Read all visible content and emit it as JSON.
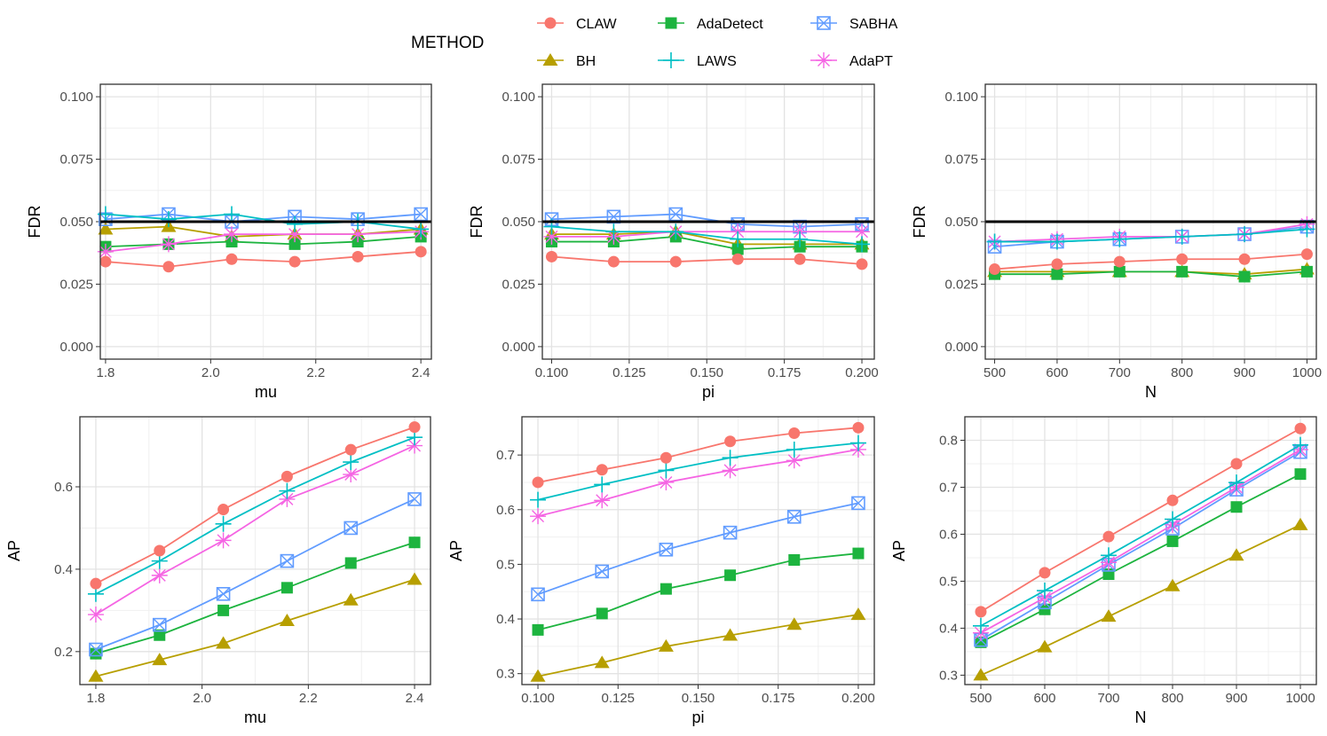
{
  "legend": {
    "title": "METHOD",
    "entries": [
      {
        "name": "CLAW",
        "color": "#f8766d",
        "shape": "circle"
      },
      {
        "name": "AdaDetect",
        "color": "#1db43f",
        "shape": "square"
      },
      {
        "name": "SABHA",
        "color": "#619cff",
        "shape": "boxcross"
      },
      {
        "name": "BH",
        "color": "#b79f00",
        "shape": "triangle"
      },
      {
        "name": "LAWS",
        "color": "#00bfc4",
        "shape": "plus"
      },
      {
        "name": "AdaPT",
        "color": "#f564e3",
        "shape": "star"
      }
    ]
  },
  "chart_data": [
    {
      "type": "line",
      "xlabel": "mu",
      "ylabel": "FDR",
      "x": [
        1.8,
        1.92,
        2.04,
        2.16,
        2.28,
        2.4
      ],
      "xlim": [
        1.79,
        2.42
      ],
      "ylim": [
        -0.005,
        0.105
      ],
      "xticks": [
        1.8,
        2.0,
        2.2,
        2.4
      ],
      "xtick_labels": [
        "1.8",
        "2.0",
        "2.2",
        "2.4"
      ],
      "yticks": [
        0.0,
        0.025,
        0.05,
        0.075,
        0.1
      ],
      "ytick_labels": [
        "0.000",
        "0.025",
        "0.050",
        "0.075",
        "0.100"
      ],
      "hline": 0.05,
      "series": [
        {
          "name": "SABHA",
          "values": [
            0.051,
            0.053,
            0.05,
            0.052,
            0.051,
            0.053
          ]
        },
        {
          "name": "LAWS",
          "values": [
            0.053,
            0.051,
            0.053,
            0.049,
            0.05,
            0.047
          ]
        },
        {
          "name": "BH",
          "values": [
            0.047,
            0.048,
            0.044,
            0.045,
            0.045,
            0.047
          ]
        },
        {
          "name": "AdaPT",
          "values": [
            0.038,
            0.041,
            0.045,
            0.045,
            0.045,
            0.046
          ]
        },
        {
          "name": "AdaDetect",
          "values": [
            0.04,
            0.041,
            0.042,
            0.041,
            0.042,
            0.044
          ]
        },
        {
          "name": "CLAW",
          "values": [
            0.034,
            0.032,
            0.035,
            0.034,
            0.036,
            0.038
          ]
        }
      ]
    },
    {
      "type": "line",
      "xlabel": "pi",
      "ylabel": "FDR",
      "x": [
        0.1,
        0.12,
        0.14,
        0.16,
        0.18,
        0.2
      ],
      "xlim": [
        0.097,
        0.204
      ],
      "ylim": [
        -0.005,
        0.105
      ],
      "xticks": [
        0.1,
        0.125,
        0.15,
        0.175,
        0.2
      ],
      "xtick_labels": [
        "0.100",
        "0.125",
        "0.150",
        "0.175",
        "0.200"
      ],
      "yticks": [
        0.0,
        0.025,
        0.05,
        0.075,
        0.1
      ],
      "ytick_labels": [
        "0.000",
        "0.025",
        "0.050",
        "0.075",
        "0.100"
      ],
      "hline": 0.05,
      "series": [
        {
          "name": "SABHA",
          "values": [
            0.051,
            0.052,
            0.053,
            0.049,
            0.048,
            0.049
          ]
        },
        {
          "name": "LAWS",
          "values": [
            0.048,
            0.046,
            0.046,
            0.043,
            0.043,
            0.041
          ]
        },
        {
          "name": "BH",
          "values": [
            0.045,
            0.045,
            0.046,
            0.041,
            0.041,
            0.041
          ]
        },
        {
          "name": "AdaPT",
          "values": [
            0.044,
            0.044,
            0.046,
            0.046,
            0.046,
            0.046
          ]
        },
        {
          "name": "AdaDetect",
          "values": [
            0.042,
            0.042,
            0.044,
            0.039,
            0.04,
            0.04
          ]
        },
        {
          "name": "CLAW",
          "values": [
            0.036,
            0.034,
            0.034,
            0.035,
            0.035,
            0.033
          ]
        }
      ]
    },
    {
      "type": "line",
      "xlabel": "N",
      "ylabel": "FDR",
      "x": [
        500,
        600,
        700,
        800,
        900,
        1000
      ],
      "xlim": [
        485,
        1015
      ],
      "ylim": [
        -0.005,
        0.105
      ],
      "xticks": [
        500,
        600,
        700,
        800,
        900,
        1000
      ],
      "xtick_labels": [
        "500",
        "600",
        "700",
        "800",
        "900",
        "1000"
      ],
      "yticks": [
        0.0,
        0.025,
        0.05,
        0.075,
        0.1
      ],
      "ytick_labels": [
        "0.000",
        "0.025",
        "0.050",
        "0.075",
        "0.100"
      ],
      "hline": 0.05,
      "series": [
        {
          "name": "LAWS",
          "values": [
            0.042,
            0.042,
            0.043,
            0.044,
            0.045,
            0.047
          ]
        },
        {
          "name": "AdaPT",
          "values": [
            0.042,
            0.043,
            0.044,
            0.044,
            0.045,
            0.049
          ]
        },
        {
          "name": "SABHA",
          "values": [
            0.04,
            0.042,
            0.043,
            0.044,
            0.045,
            0.048
          ]
        },
        {
          "name": "BH",
          "values": [
            0.03,
            0.03,
            0.03,
            0.03,
            0.029,
            0.031
          ]
        },
        {
          "name": "AdaDetect",
          "values": [
            0.029,
            0.029,
            0.03,
            0.03,
            0.028,
            0.03
          ]
        },
        {
          "name": "CLAW",
          "values": [
            0.031,
            0.033,
            0.034,
            0.035,
            0.035,
            0.037
          ]
        }
      ]
    },
    {
      "type": "line",
      "xlabel": "mu",
      "ylabel": "AP",
      "x": [
        1.8,
        1.92,
        2.04,
        2.16,
        2.28,
        2.4
      ],
      "xlim": [
        1.77,
        2.43
      ],
      "ylim": [
        0.12,
        0.77
      ],
      "xticks": [
        1.8,
        2.0,
        2.2,
        2.4
      ],
      "xtick_labels": [
        "1.8",
        "2.0",
        "2.2",
        "2.4"
      ],
      "yticks": [
        0.2,
        0.4,
        0.6
      ],
      "ytick_labels": [
        "0.2",
        "0.4",
        "0.6"
      ],
      "series": [
        {
          "name": "BH",
          "values": [
            0.14,
            0.18,
            0.22,
            0.275,
            0.325,
            0.375
          ]
        },
        {
          "name": "AdaDetect",
          "values": [
            0.195,
            0.24,
            0.3,
            0.355,
            0.415,
            0.465
          ]
        },
        {
          "name": "SABHA",
          "values": [
            0.205,
            0.265,
            0.34,
            0.42,
            0.5,
            0.57
          ]
        },
        {
          "name": "AdaPT",
          "values": [
            0.29,
            0.385,
            0.47,
            0.57,
            0.63,
            0.7
          ]
        },
        {
          "name": "LAWS",
          "values": [
            0.34,
            0.42,
            0.51,
            0.59,
            0.66,
            0.72
          ]
        },
        {
          "name": "CLAW",
          "values": [
            0.365,
            0.445,
            0.545,
            0.625,
            0.69,
            0.745
          ]
        }
      ]
    },
    {
      "type": "line",
      "xlabel": "pi",
      "ylabel": "AP",
      "x": [
        0.1,
        0.12,
        0.14,
        0.16,
        0.18,
        0.2
      ],
      "xlim": [
        0.095,
        0.205
      ],
      "ylim": [
        0.28,
        0.77
      ],
      "xticks": [
        0.1,
        0.125,
        0.15,
        0.175,
        0.2
      ],
      "xtick_labels": [
        "0.100",
        "0.125",
        "0.150",
        "0.175",
        "0.200"
      ],
      "yticks": [
        0.3,
        0.4,
        0.5,
        0.6,
        0.7
      ],
      "ytick_labels": [
        "0.3",
        "0.4",
        "0.5",
        "0.6",
        "0.7"
      ],
      "series": [
        {
          "name": "BH",
          "values": [
            0.295,
            0.32,
            0.35,
            0.37,
            0.39,
            0.408
          ]
        },
        {
          "name": "AdaDetect",
          "values": [
            0.38,
            0.41,
            0.455,
            0.48,
            0.508,
            0.52
          ]
        },
        {
          "name": "SABHA",
          "values": [
            0.445,
            0.487,
            0.527,
            0.558,
            0.587,
            0.612
          ]
        },
        {
          "name": "AdaPT",
          "values": [
            0.588,
            0.617,
            0.65,
            0.672,
            0.69,
            0.71
          ]
        },
        {
          "name": "LAWS",
          "values": [
            0.618,
            0.646,
            0.672,
            0.695,
            0.71,
            0.722
          ]
        },
        {
          "name": "CLAW",
          "values": [
            0.65,
            0.673,
            0.695,
            0.725,
            0.74,
            0.75
          ]
        }
      ]
    },
    {
      "type": "line",
      "xlabel": "N",
      "ylabel": "AP",
      "x": [
        500,
        600,
        700,
        800,
        900,
        1000
      ],
      "xlim": [
        475,
        1025
      ],
      "ylim": [
        0.28,
        0.85
      ],
      "xticks": [
        500,
        600,
        700,
        800,
        900,
        1000
      ],
      "xtick_labels": [
        "500",
        "600",
        "700",
        "800",
        "900",
        "1000"
      ],
      "yticks": [
        0.3,
        0.4,
        0.5,
        0.6,
        0.7,
        0.8
      ],
      "ytick_labels": [
        "0.3",
        "0.4",
        "0.5",
        "0.6",
        "0.7",
        "0.8"
      ],
      "series": [
        {
          "name": "BH",
          "values": [
            0.3,
            0.36,
            0.425,
            0.49,
            0.555,
            0.62
          ]
        },
        {
          "name": "AdaDetect",
          "values": [
            0.37,
            0.44,
            0.515,
            0.585,
            0.658,
            0.728
          ]
        },
        {
          "name": "SABHA",
          "values": [
            0.375,
            0.455,
            0.535,
            0.612,
            0.695,
            0.775
          ]
        },
        {
          "name": "AdaPT",
          "values": [
            0.39,
            0.465,
            0.54,
            0.62,
            0.7,
            0.78
          ]
        },
        {
          "name": "LAWS",
          "values": [
            0.405,
            0.48,
            0.555,
            0.632,
            0.71,
            0.79
          ]
        },
        {
          "name": "CLAW",
          "values": [
            0.435,
            0.518,
            0.595,
            0.672,
            0.75,
            0.825
          ]
        }
      ]
    }
  ]
}
